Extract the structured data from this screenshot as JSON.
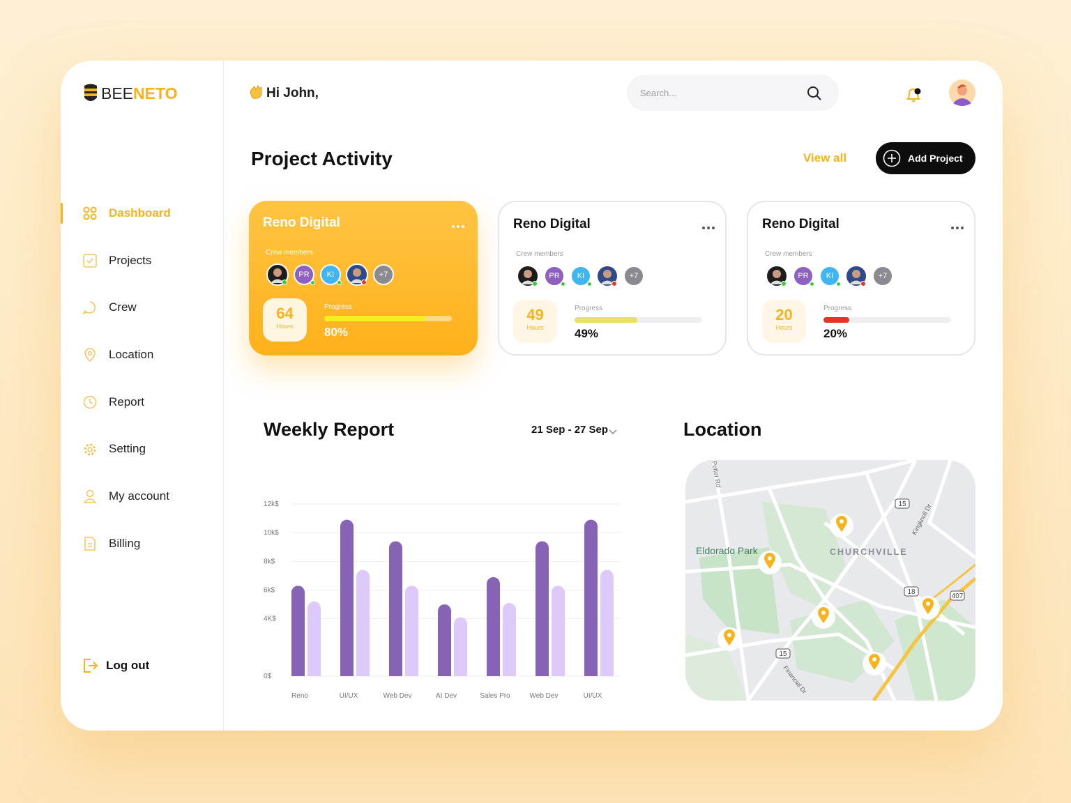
{
  "brand": {
    "bee": "BEE",
    "neto": "NETO"
  },
  "greeting": "Hi John,",
  "search_placeholder": "Search...",
  "nav": {
    "items": [
      "Dashboard",
      "Projects",
      "Crew",
      "Location",
      "Report",
      "Setting",
      "My account",
      "Billing"
    ],
    "active": 0,
    "logout": "Log out"
  },
  "activity": {
    "title": "Project Activity",
    "view_all": "View all",
    "add_project": "Add Project",
    "cards": [
      {
        "name": "Reno Digital",
        "crew_label": "Crew members",
        "members": [
          "PR",
          "KI",
          "+7"
        ],
        "hours": 64,
        "hours_label": "Hours",
        "progress_label": "Progress",
        "progress": 80,
        "progress_text": "80%",
        "bar_color": "#f6ee1f",
        "highlighted": true
      },
      {
        "name": "Reno Digital",
        "crew_label": "Crew members",
        "members": [
          "PR",
          "KI",
          "+7"
        ],
        "hours": 49,
        "hours_label": "Hours",
        "progress_label": "Progress",
        "progress": 49,
        "progress_text": "49%",
        "bar_color": "#e9e06b",
        "highlighted": false
      },
      {
        "name": "Reno Digital",
        "crew_label": "Crew members",
        "members": [
          "PR",
          "KI",
          "+7"
        ],
        "hours": 20,
        "hours_label": "Hours",
        "progress_label": "Progress",
        "progress": 20,
        "progress_text": "20%",
        "bar_color": "#e33424",
        "highlighted": false
      }
    ]
  },
  "weekly": {
    "title": "Weekly Report",
    "range": "21 Sep - 27 Sep"
  },
  "chart_data": {
    "type": "bar",
    "categories": [
      "Reno",
      "UI/UX",
      "Web Dev",
      "AI Dev",
      "Sales Pro",
      "Web Dev",
      "UI/UX"
    ],
    "series": [
      {
        "color": "#8663b5",
        "values": [
          6300,
          10900,
          9400,
          5000,
          6900,
          9400,
          10900
        ]
      },
      {
        "color": "#ddcafa",
        "values": [
          5200,
          7400,
          6300,
          4100,
          5100,
          6300,
          7400
        ]
      }
    ],
    "ylim": [
      0,
      12000
    ],
    "yticks": [
      {
        "value": 0,
        "label": "0$"
      },
      {
        "value": 4000,
        "label": "4K$"
      },
      {
        "value": 6000,
        "label": "6k$"
      },
      {
        "value": 8000,
        "label": "8k$"
      },
      {
        "value": 10000,
        "label": "10k$"
      },
      {
        "value": 12000,
        "label": "12k$"
      }
    ],
    "grid": true
  },
  "location": {
    "title": "Location",
    "map_labels": [
      "Eldorado Park",
      "CHURCHVILLE",
      "Potter Rd",
      "Kingknoll Dr",
      "Financial Dr",
      "15",
      "18",
      "407",
      "15"
    ]
  }
}
